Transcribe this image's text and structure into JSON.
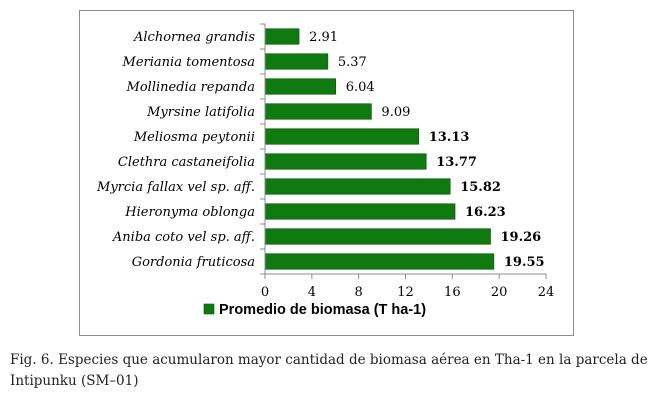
{
  "chart_data": {
    "type": "bar",
    "orientation": "horizontal",
    "categories": [
      "Alchornea grandis",
      "Meriania tomentosa",
      "Mollinedia repanda",
      "Myrsine latifolia",
      "Meliosma peytonii",
      "Clethra castaneifolia",
      "Myrcia fallax vel sp. aff.",
      "Hieronyma oblonga",
      "Aniba coto vel sp. aff.",
      "Gordonia fruticosa"
    ],
    "series": [
      {
        "name": "Promedio de biomasa (T ha-1)",
        "values": [
          2.91,
          5.37,
          6.04,
          9.09,
          13.13,
          13.77,
          15.82,
          16.23,
          19.26,
          19.55
        ],
        "labels": [
          "2.91",
          "5.37",
          "6.04",
          "9.09",
          "13.13",
          "13.77",
          "15.82",
          "16.23",
          "19.26",
          "19.55"
        ],
        "label_bold": [
          false,
          false,
          false,
          false,
          true,
          true,
          true,
          true,
          true,
          true
        ],
        "color": "#0f7a0f"
      }
    ],
    "xlim": [
      0,
      24
    ],
    "xticks": [
      "0",
      "4",
      "8",
      "12",
      "16",
      "20",
      "24"
    ],
    "grid": false,
    "legend_position": "bottom",
    "title": "",
    "xlabel": "",
    "ylabel": ""
  },
  "caption": "Fig. 6. Especies que acumularon mayor cantidad de biomasa aérea en Tha-1 en la parcela de Intipunku (SM–01)"
}
